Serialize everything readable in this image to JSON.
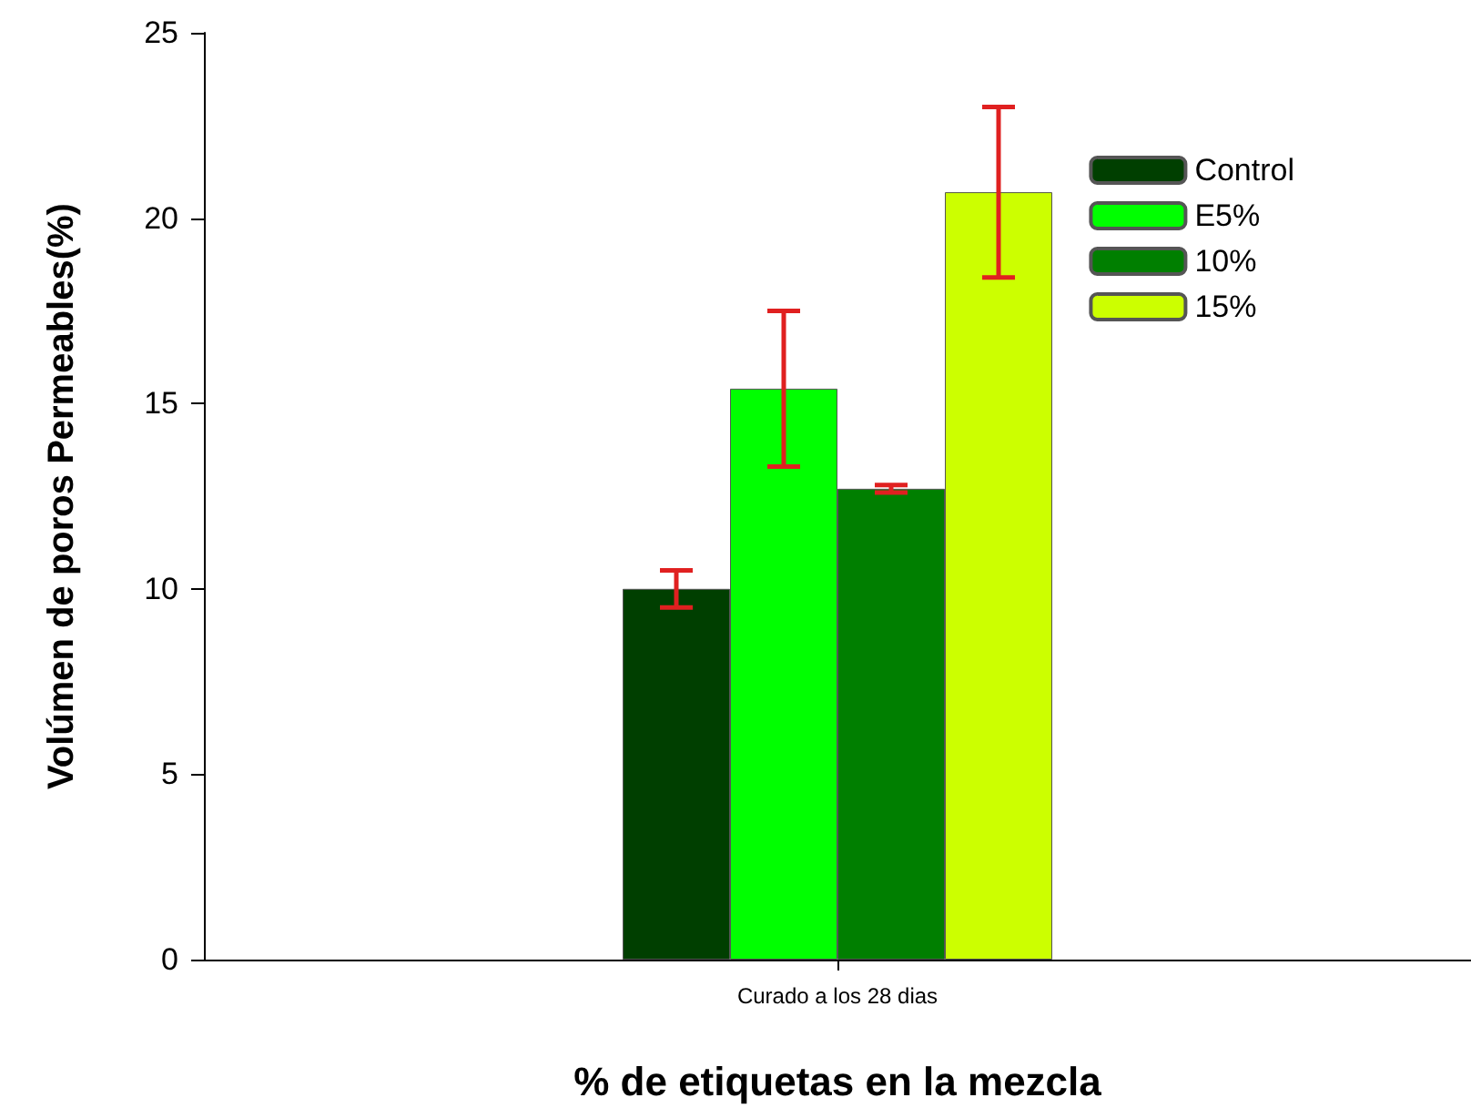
{
  "chart_data": {
    "type": "bar",
    "xlabel": "% de etiquetas en la mezcla",
    "ylabel": "Volúmen de poros Permeables(%)",
    "categories": [
      "Curado a los 28 dias"
    ],
    "series": [
      {
        "name": "Control",
        "color": "#003f00",
        "values": [
          10.0
        ],
        "errors": [
          0.5
        ]
      },
      {
        "name": "E5%",
        "color": "#00ff00",
        "values": [
          15.4
        ],
        "errors": [
          2.1
        ]
      },
      {
        "name": "10%",
        "color": "#007f00",
        "values": [
          12.7
        ],
        "errors": [
          0.1
        ]
      },
      {
        "name": "15%",
        "color": "#ccff00",
        "values": [
          20.7
        ],
        "errors": [
          2.3
        ]
      }
    ],
    "ylim": [
      0,
      25
    ],
    "yticks": [
      0,
      5,
      10,
      15,
      20,
      25
    ],
    "legend": "top right",
    "grid": false
  }
}
